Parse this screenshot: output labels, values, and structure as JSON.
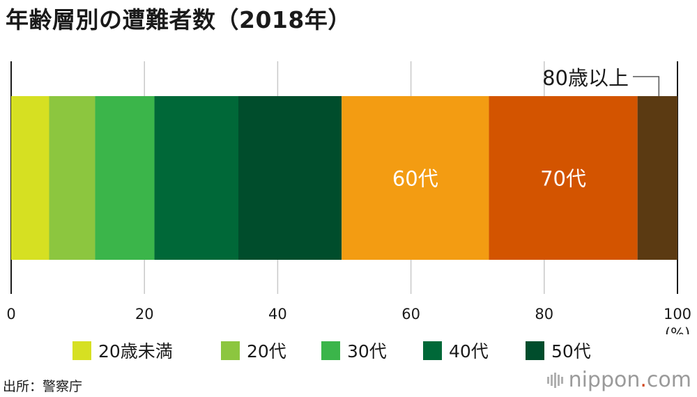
{
  "title": "年齢層別の遭難者数（2018年）",
  "chart_data": {
    "type": "bar",
    "orientation": "horizontal",
    "stacked": true,
    "unit": "(%)",
    "xlim": [
      0,
      100
    ],
    "ticks": [
      "0",
      "20",
      "40",
      "60",
      "80",
      "100"
    ],
    "grid": true,
    "legend_position": "bottom",
    "series": [
      {
        "name": "20歳未満",
        "value": 5.7,
        "color": "#d6e022"
      },
      {
        "name": "20代",
        "value": 6.9,
        "color": "#8cc63f"
      },
      {
        "name": "30代",
        "value": 8.9,
        "color": "#3bb54a"
      },
      {
        "name": "40代",
        "value": 12.6,
        "color": "#006838"
      },
      {
        "name": "50代",
        "value": 15.5,
        "color": "#004d2c"
      },
      {
        "name": "60代",
        "value": 22.1,
        "color": "#f39c12",
        "label": "60代"
      },
      {
        "name": "70代",
        "value": 22.3,
        "color": "#d35400",
        "label": "70代"
      },
      {
        "name": "80歳以上",
        "value": 6.0,
        "color": "#5b3a12",
        "callout": "80歳以上"
      }
    ]
  },
  "legend": [
    "20歳未満",
    "20代",
    "30代",
    "40代",
    "50代"
  ],
  "source": "出所：警察庁",
  "brand": {
    "name": "nippon",
    "dot": ".",
    "tld": "com"
  }
}
